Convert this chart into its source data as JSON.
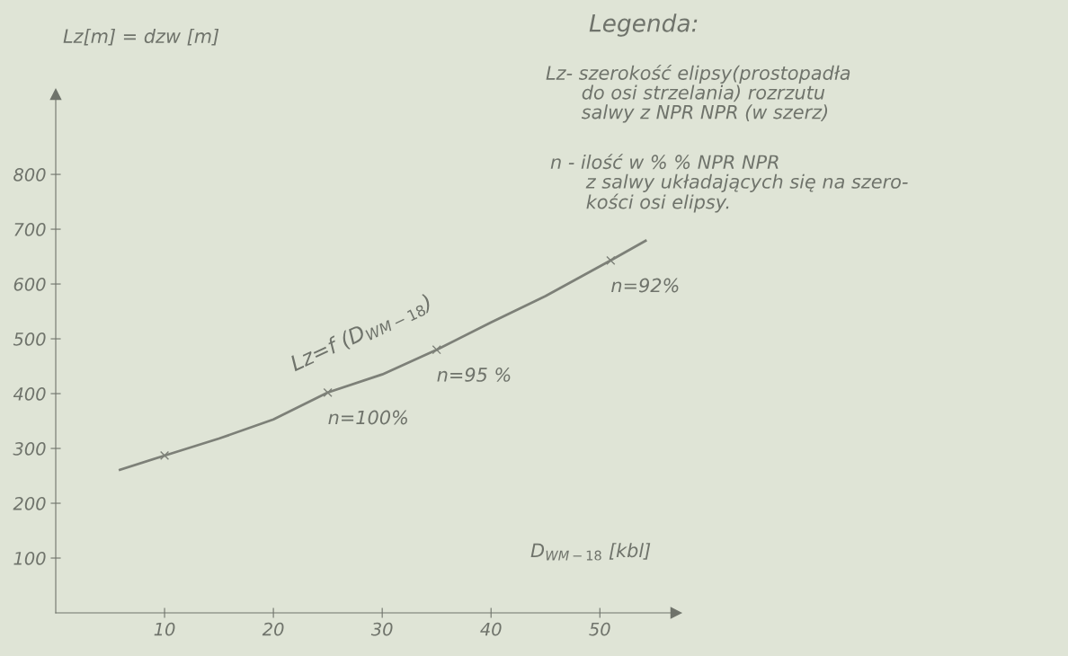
{
  "chart_data": {
    "type": "line",
    "title": "Legenda:",
    "ylabel": "Lz[m] = dzw [m]",
    "xlabel": "D$_{WM−18}$ [kbl]",
    "xlim": [
      0,
      57
    ],
    "ylim": [
      0,
      946
    ],
    "xticks": [
      10,
      20,
      30,
      40,
      50
    ],
    "yticks": [
      100,
      200,
      300,
      400,
      500,
      600,
      700,
      800
    ],
    "grid": false,
    "legend": false,
    "series": [
      {
        "color": "#7d8078",
        "marker": "none",
        "x": [
          5.9,
          10,
          15,
          20,
          25,
          30,
          35,
          40,
          45,
          51,
          54.2
        ],
        "values": [
          261,
          287,
          318,
          353,
          402,
          435,
          480,
          530,
          578,
          643,
          679
        ]
      },
      {
        "type": "scatter",
        "color": "#7d8078",
        "marker": "cross",
        "x": [
          10,
          25,
          35,
          51
        ],
        "values": [
          287,
          402,
          480,
          643
        ]
      }
    ],
    "annotations": [
      "Lz- szerokość elipsy(prostopadła\n      do osi strzelania) rozrzutu\n      salwy z NPR NPR (w szerz)",
      "n - ilość w % % NPR NPR\n      z salwy układających się na szero-\n      kości osi elipsy.",
      "Lz=f (D$_{WM−18}$)",
      {
        "text": "n=100%",
        "x": 25,
        "y": 402
      },
      {
        "text": "n=95 %",
        "x": 35,
        "y": 480
      },
      {
        "text": "n=92%",
        "x": 51,
        "y": 643
      }
    ]
  }
}
